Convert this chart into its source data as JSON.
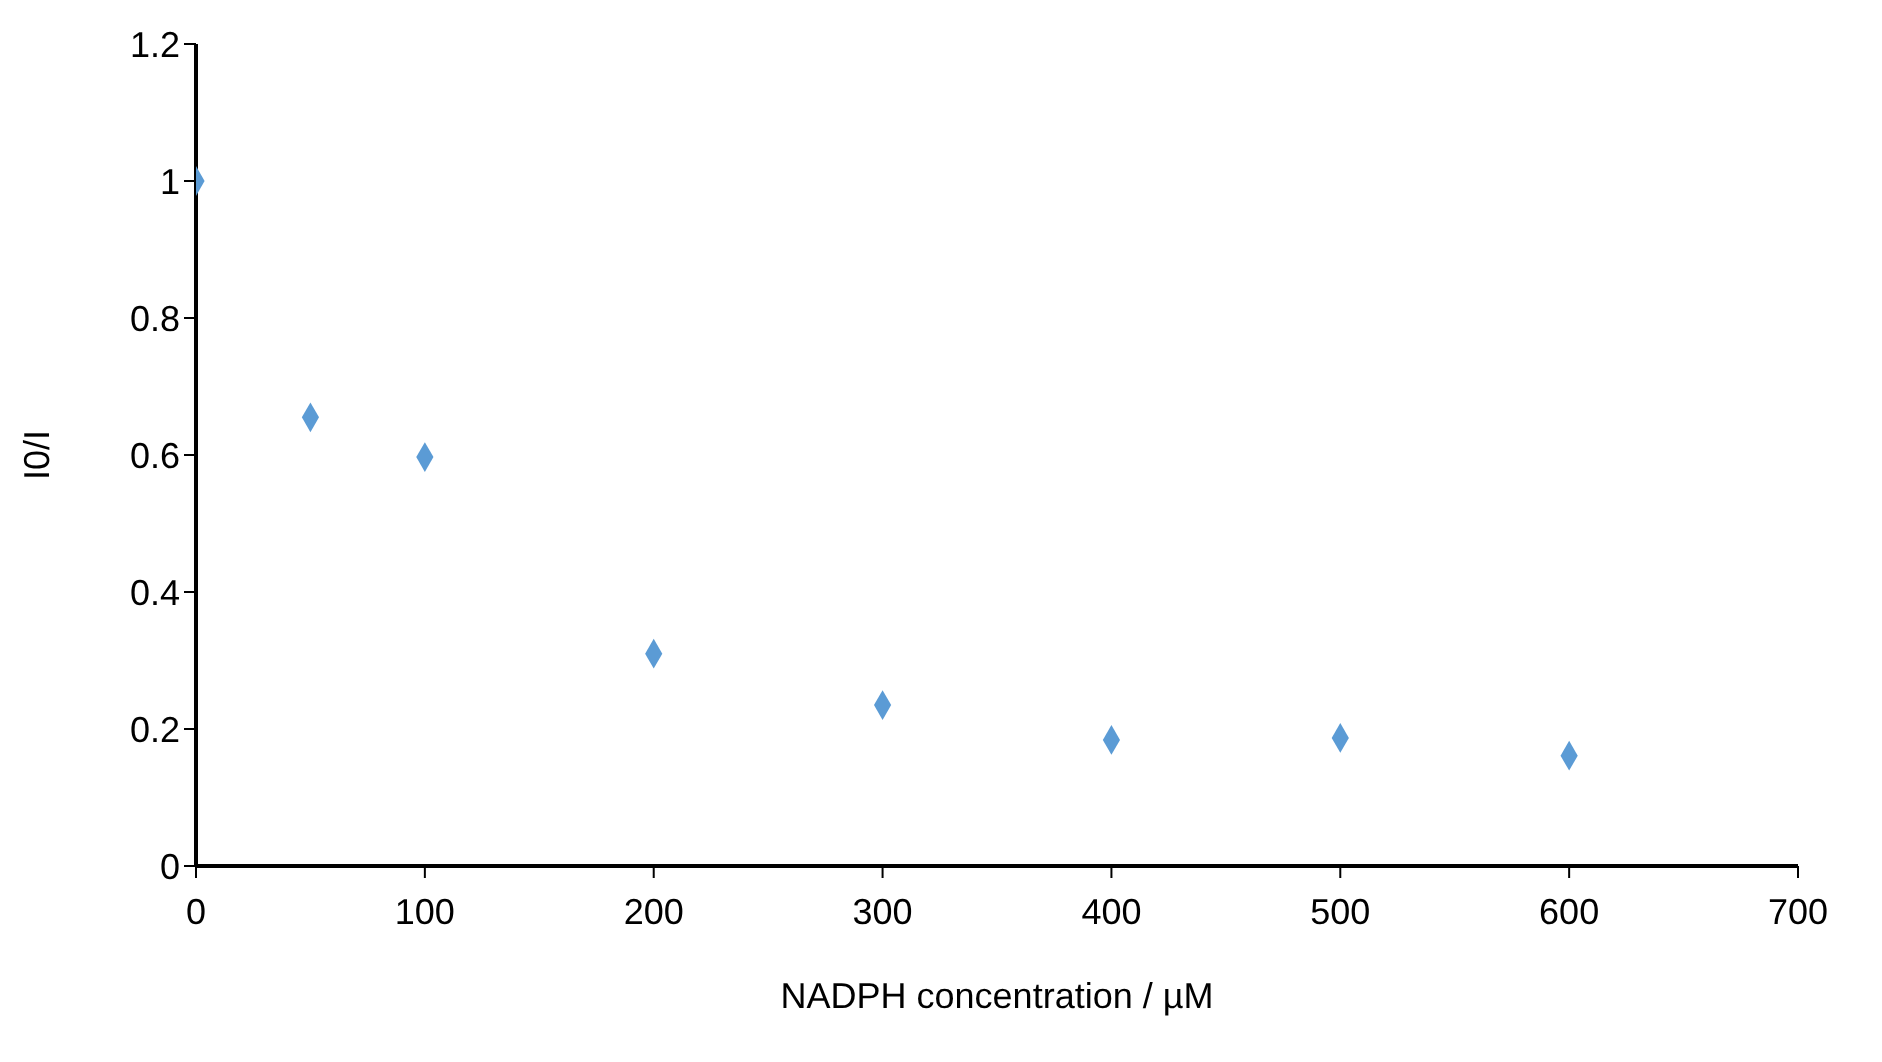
{
  "chart_data": {
    "type": "scatter",
    "xlabel": "NADPH concentration / µM",
    "ylabel": "I0/I",
    "x": [
      0,
      50,
      100,
      200,
      300,
      400,
      500,
      600
    ],
    "values": [
      1.0,
      0.655,
      0.597,
      0.31,
      0.235,
      0.184,
      0.187,
      0.161
    ],
    "color": "#5b9bd5",
    "marker": "diamond",
    "xlim": [
      0,
      700
    ],
    "xticks": [
      0,
      100,
      200,
      300,
      400,
      500,
      600,
      700
    ],
    "ylim": [
      0,
      1.2
    ],
    "yticks": [
      0,
      0.2,
      0.4,
      0.6,
      0.8,
      1,
      1.2
    ],
    "grid": false,
    "legend": false
  }
}
